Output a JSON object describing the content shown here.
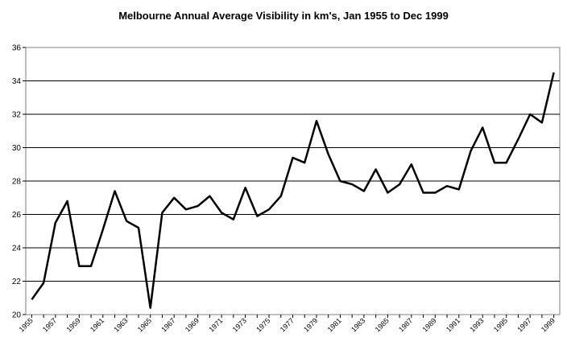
{
  "chart_data": {
    "type": "line",
    "title": "Melbourne Annual Average Visibility in km's, Jan 1955 to Dec 1999",
    "xlabel": "",
    "ylabel": "",
    "ylim": [
      20,
      36
    ],
    "yticks": [
      20,
      22,
      24,
      26,
      28,
      30,
      32,
      34,
      36
    ],
    "grid": true,
    "legend": "none",
    "line_color": "#000000",
    "x": [
      1955,
      1956,
      1957,
      1958,
      1959,
      1960,
      1961,
      1962,
      1963,
      1964,
      1965,
      1966,
      1967,
      1968,
      1969,
      1970,
      1971,
      1972,
      1973,
      1974,
      1975,
      1976,
      1977,
      1978,
      1979,
      1980,
      1981,
      1982,
      1983,
      1984,
      1985,
      1986,
      1987,
      1988,
      1989,
      1990,
      1991,
      1992,
      1993,
      1994,
      1995,
      1996,
      1997,
      1998,
      1999
    ],
    "xtick_labels": [
      "1955",
      "1957",
      "1959",
      "1961",
      "1963",
      "1965",
      "1967",
      "1969",
      "1971",
      "1973",
      "1975",
      "1977",
      "1979",
      "1981",
      "1983",
      "1985",
      "1987",
      "1989",
      "1991",
      "1993",
      "1995",
      "1997",
      "1999"
    ],
    "series": [
      {
        "values": [
          20.9,
          21.9,
          25.5,
          26.8,
          22.9,
          22.9,
          25.1,
          27.4,
          25.6,
          25.2,
          20.4,
          26.1,
          27.0,
          26.3,
          26.5,
          27.1,
          26.1,
          25.7,
          27.6,
          25.9,
          26.3,
          27.1,
          29.4,
          29.1,
          31.6,
          29.6,
          28.0,
          27.8,
          27.4,
          28.7,
          27.3,
          27.8,
          29.0,
          27.3,
          27.3,
          27.7,
          27.5,
          29.8,
          31.2,
          29.1,
          29.1,
          30.5,
          32.0,
          31.5,
          34.5
        ]
      }
    ]
  }
}
